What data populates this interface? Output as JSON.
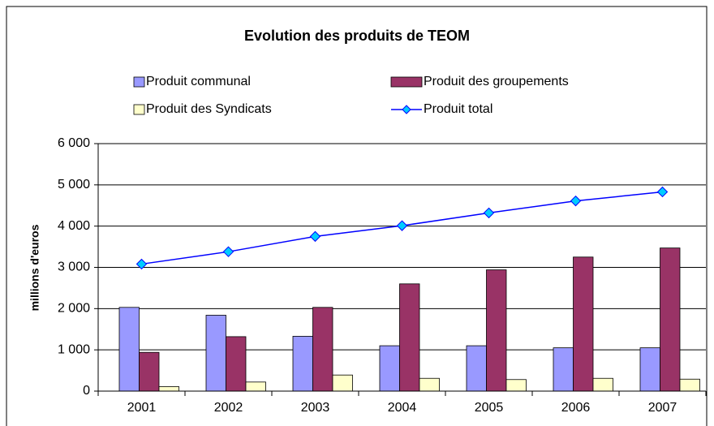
{
  "chart_data": {
    "type": "bar",
    "title": "Evolution des produits de TEOM",
    "y_label": "millions d'euros",
    "categories": [
      "2001",
      "2002",
      "2003",
      "2004",
      "2005",
      "2006",
      "2007"
    ],
    "series": [
      {
        "name": "Produit communal",
        "color": "#9999ff",
        "values": [
          2030,
          1840,
          1330,
          1100,
          1100,
          1050,
          1050
        ]
      },
      {
        "name": "Produit des groupements",
        "color": "#993366",
        "values": [
          940,
          1320,
          2030,
          2600,
          2940,
          3250,
          3470
        ]
      },
      {
        "name": "Produit des Syndicats",
        "color": "#ffffcc",
        "values": [
          110,
          220,
          390,
          310,
          280,
          310,
          290
        ]
      },
      {
        "name": "Produit total",
        "color": "#0000ff",
        "type": "line",
        "values": [
          3080,
          3380,
          3750,
          4010,
          4320,
          4610,
          4830
        ]
      }
    ],
    "ylim": [
      0,
      6000
    ],
    "yticks": [
      0,
      {
        "value": 1000,
        "label": "1 000"
      },
      {
        "value": 2000,
        "label": "2 000"
      },
      {
        "value": 3000,
        "label": "3 000"
      },
      {
        "value": 4000,
        "label": "4 000"
      },
      {
        "value": 5000,
        "label": "5 000"
      },
      {
        "value": 6000,
        "label": "6 000"
      }
    ],
    "grid": true
  }
}
